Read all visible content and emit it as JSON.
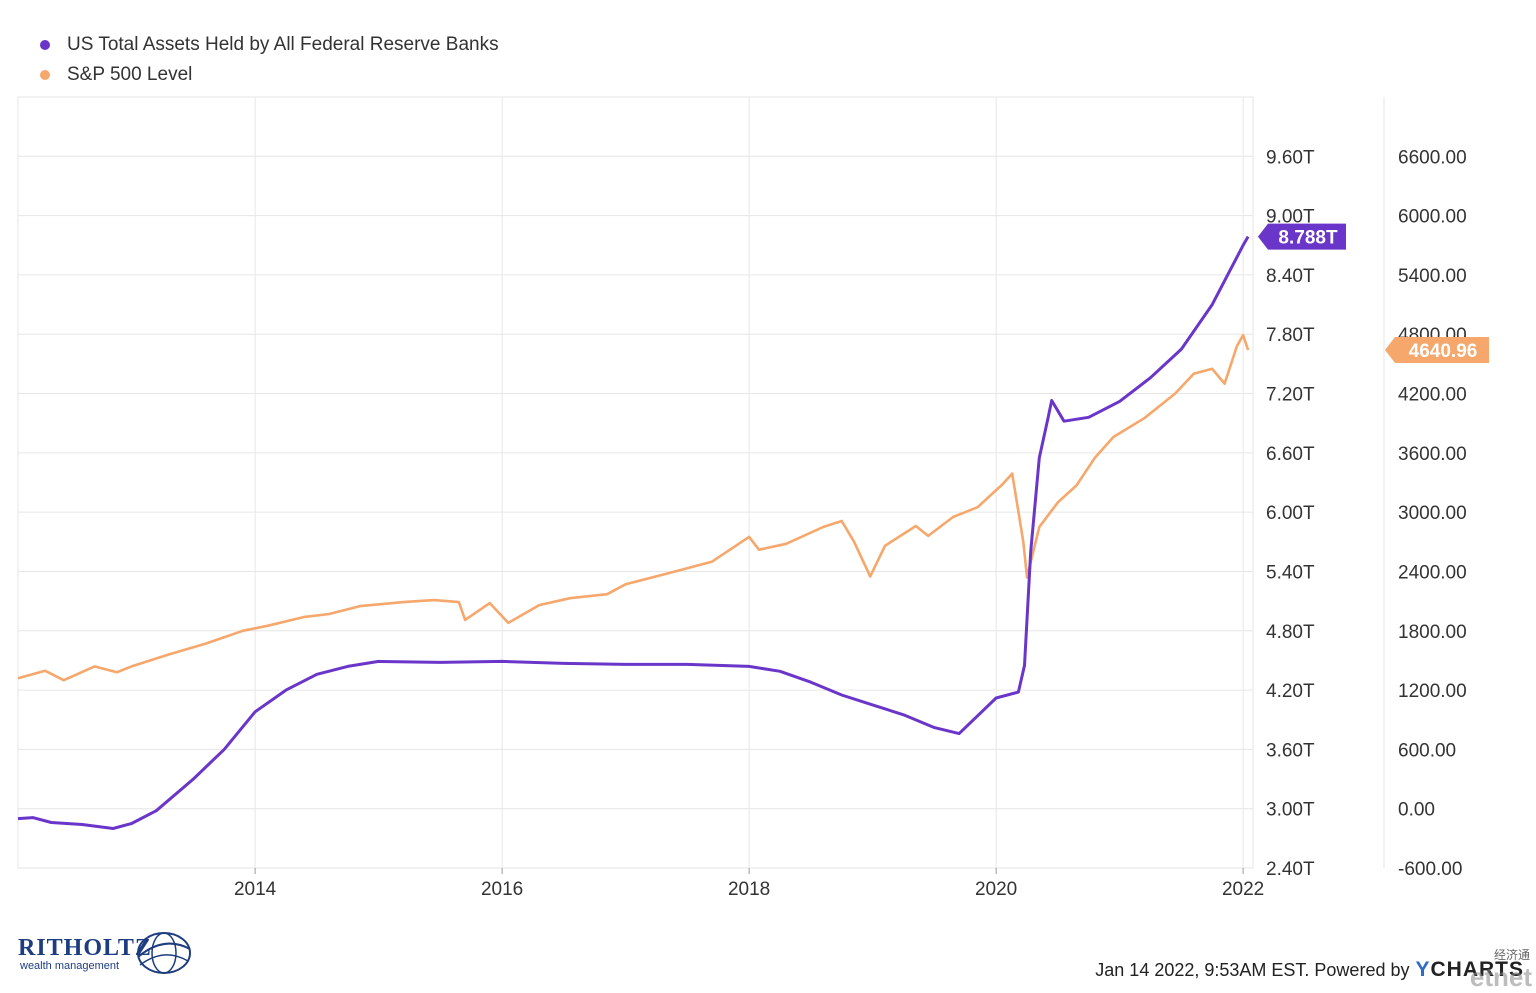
{
  "chart_data": {
    "type": "line",
    "title": "",
    "legend_placement": "top-left",
    "grid": true,
    "x_axis": {
      "range": [
        2012.08,
        2022.08
      ],
      "ticks": [
        "2014",
        "2016",
        "2018",
        "2020",
        "2022"
      ]
    },
    "y_axis_left": {
      "range": [
        2.4,
        10.2
      ],
      "ticks": [
        "9.60T",
        "9.00T",
        "8.40T",
        "7.80T",
        "7.20T",
        "6.60T",
        "6.00T",
        "5.40T",
        "4.80T",
        "4.20T",
        "3.60T",
        "3.00T",
        "2.40T"
      ]
    },
    "y_axis_right": {
      "range": [
        -600,
        7200
      ],
      "ticks": [
        "6600.00",
        "6000.00",
        "5400.00",
        "4800.00",
        "4200.00",
        "3600.00",
        "3000.00",
        "2400.00",
        "1800.00",
        "1200.00",
        "600.00",
        "0.00",
        "-600.00"
      ]
    },
    "series": [
      {
        "name": "US Total Assets Held by All Federal Reserve Banks",
        "axis": "left",
        "color": "#6a35c9",
        "last_value_label": "8.788T",
        "points": [
          [
            2012.08,
            2.9
          ],
          [
            2012.2,
            2.91
          ],
          [
            2012.35,
            2.86
          ],
          [
            2012.6,
            2.84
          ],
          [
            2012.85,
            2.8
          ],
          [
            2013.0,
            2.85
          ],
          [
            2013.2,
            2.98
          ],
          [
            2013.5,
            3.3
          ],
          [
            2013.75,
            3.6
          ],
          [
            2014.0,
            3.98
          ],
          [
            2014.25,
            4.2
          ],
          [
            2014.5,
            4.36
          ],
          [
            2014.75,
            4.44
          ],
          [
            2015.0,
            4.49
          ],
          [
            2015.5,
            4.48
          ],
          [
            2016.0,
            4.49
          ],
          [
            2016.5,
            4.47
          ],
          [
            2017.0,
            4.46
          ],
          [
            2017.5,
            4.46
          ],
          [
            2018.0,
            4.44
          ],
          [
            2018.25,
            4.39
          ],
          [
            2018.5,
            4.28
          ],
          [
            2018.75,
            4.15
          ],
          [
            2019.0,
            4.05
          ],
          [
            2019.25,
            3.95
          ],
          [
            2019.5,
            3.82
          ],
          [
            2019.7,
            3.76
          ],
          [
            2019.85,
            3.94
          ],
          [
            2020.0,
            4.12
          ],
          [
            2020.18,
            4.18
          ],
          [
            2020.23,
            4.45
          ],
          [
            2020.28,
            5.6
          ],
          [
            2020.35,
            6.55
          ],
          [
            2020.42,
            6.95
          ],
          [
            2020.45,
            7.13
          ],
          [
            2020.55,
            6.92
          ],
          [
            2020.75,
            6.96
          ],
          [
            2021.0,
            7.12
          ],
          [
            2021.25,
            7.36
          ],
          [
            2021.5,
            7.65
          ],
          [
            2021.75,
            8.1
          ],
          [
            2022.0,
            8.7
          ],
          [
            2022.04,
            8.788
          ]
        ]
      },
      {
        "name": "S&P 500 Level",
        "axis": "right",
        "color": "#f5a76c",
        "last_value_label": "4640.96",
        "points": [
          [
            2012.08,
            1320
          ],
          [
            2012.3,
            1395
          ],
          [
            2012.45,
            1300
          ],
          [
            2012.7,
            1440
          ],
          [
            2012.88,
            1380
          ],
          [
            2013.0,
            1440
          ],
          [
            2013.3,
            1560
          ],
          [
            2013.6,
            1670
          ],
          [
            2013.9,
            1800
          ],
          [
            2014.1,
            1850
          ],
          [
            2014.4,
            1940
          ],
          [
            2014.6,
            1970
          ],
          [
            2014.85,
            2050
          ],
          [
            2015.2,
            2090
          ],
          [
            2015.45,
            2110
          ],
          [
            2015.65,
            2090
          ],
          [
            2015.7,
            1910
          ],
          [
            2015.9,
            2080
          ],
          [
            2016.05,
            1880
          ],
          [
            2016.3,
            2060
          ],
          [
            2016.55,
            2130
          ],
          [
            2016.85,
            2170
          ],
          [
            2017.0,
            2270
          ],
          [
            2017.4,
            2400
          ],
          [
            2017.7,
            2500
          ],
          [
            2018.0,
            2750
          ],
          [
            2018.08,
            2620
          ],
          [
            2018.3,
            2680
          ],
          [
            2018.6,
            2850
          ],
          [
            2018.75,
            2910
          ],
          [
            2018.85,
            2700
          ],
          [
            2018.98,
            2350
          ],
          [
            2019.1,
            2660
          ],
          [
            2019.35,
            2860
          ],
          [
            2019.45,
            2760
          ],
          [
            2019.65,
            2950
          ],
          [
            2019.85,
            3050
          ],
          [
            2020.05,
            3280
          ],
          [
            2020.13,
            3390
          ],
          [
            2020.22,
            2700
          ],
          [
            2020.25,
            2340
          ],
          [
            2020.35,
            2850
          ],
          [
            2020.5,
            3100
          ],
          [
            2020.65,
            3270
          ],
          [
            2020.8,
            3550
          ],
          [
            2020.95,
            3760
          ],
          [
            2021.2,
            3950
          ],
          [
            2021.45,
            4200
          ],
          [
            2021.6,
            4400
          ],
          [
            2021.75,
            4450
          ],
          [
            2021.85,
            4300
          ],
          [
            2021.95,
            4680
          ],
          [
            2022.0,
            4790
          ],
          [
            2022.04,
            4640.96
          ]
        ]
      }
    ]
  },
  "legend": {
    "item1": "US Total Assets Held by All Federal Reserve Banks",
    "item2": "S&P 500 Level"
  },
  "footer": {
    "brand_name": "RITHOLTZ",
    "brand_sub": "wealth management",
    "note": "Jan 14 2022, 9:53AM EST. Powered by",
    "ycharts_y": "Y",
    "ycharts_rest": "CHARTS",
    "watermark_top": "经济通",
    "watermark_bottom": "etnet"
  },
  "colors": {
    "grid": "#e6e6e6",
    "axis_text": "#333333",
    "purple": "#6a35c9",
    "orange": "#f5a76c"
  }
}
